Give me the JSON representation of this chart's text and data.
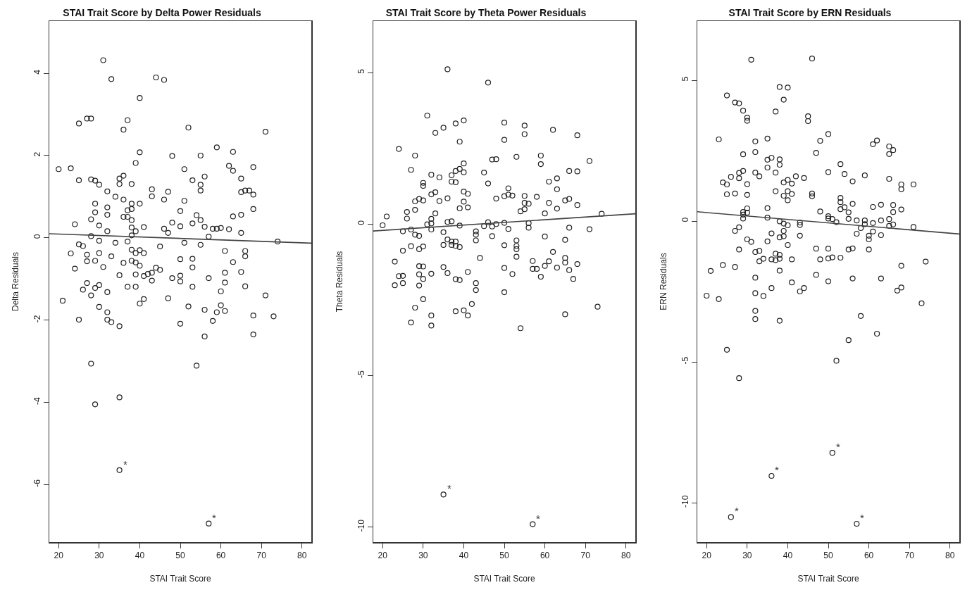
{
  "chart_data": [
    {
      "type": "scatter",
      "title": "STAI Trait Score by Delta Power Residuals",
      "xlabel": "STAI Trait Score",
      "ylabel": "Delta Residuals",
      "xlim": [
        17.7,
        82.3
      ],
      "xticks": [
        20,
        30,
        40,
        50,
        60,
        70,
        80
      ],
      "ylim": [
        -7.4,
        5.27
      ],
      "yticks": [
        -6,
        -4,
        -2,
        0,
        2,
        4
      ],
      "grid": false,
      "annotations": [
        {
          "text": "*",
          "x": 35,
          "y": -5.65
        },
        {
          "text": "*",
          "x": 57,
          "y": -6.95
        }
      ],
      "series": [
        {
          "marker": "circle",
          "color": "#222222",
          "x": [
            31,
            33,
            44,
            46,
            40,
            25,
            27,
            28,
            37,
            36,
            52,
            71,
            59,
            63,
            40,
            48,
            55,
            20,
            23,
            39,
            51,
            62,
            63,
            68,
            25,
            28,
            29,
            30,
            35,
            36,
            35,
            38,
            53,
            56,
            55,
            55,
            65,
            65,
            66,
            67,
            68,
            32,
            43,
            47,
            34,
            43,
            46,
            36,
            51,
            29,
            38,
            40,
            32,
            29,
            37,
            38,
            50,
            68,
            32,
            54,
            65,
            63,
            28,
            36,
            37,
            38,
            24,
            30,
            41,
            38,
            39,
            46,
            47,
            48,
            50,
            53,
            55,
            56,
            58,
            59,
            60,
            62,
            65,
            32,
            28,
            38,
            57,
            30,
            34,
            37,
            51,
            55,
            74,
            25,
            26,
            23,
            27,
            30,
            33,
            38,
            39,
            40,
            41,
            45,
            61,
            66,
            66,
            27,
            29,
            36,
            38,
            39,
            40,
            50,
            53,
            63,
            24,
            31,
            53,
            35,
            39,
            41,
            42,
            43,
            44,
            45,
            43,
            48,
            50,
            50,
            57,
            61,
            65,
            27,
            26,
            29,
            30,
            32,
            37,
            39,
            53,
            61,
            66,
            60,
            28,
            21,
            40,
            41,
            47,
            71,
            30,
            32,
            52,
            56,
            59,
            60,
            61,
            68,
            73,
            25,
            32,
            33,
            35,
            50,
            58,
            56,
            68,
            28,
            54,
            29,
            35,
            35,
            57
          ],
          "values": [
            4.32,
            3.86,
            3.9,
            3.84,
            3.4,
            2.78,
            2.9,
            2.9,
            2.86,
            2.63,
            2.68,
            2.58,
            2.2,
            2.09,
            2.08,
            1.99,
            2.0,
            1.67,
            1.69,
            1.82,
            1.67,
            1.75,
            1.63,
            1.72,
            1.4,
            1.42,
            1.39,
            1.29,
            1.44,
            1.51,
            1.31,
            1.31,
            1.4,
            1.49,
            1.29,
            1.15,
            1.44,
            1.11,
            1.15,
            1.15,
            1.05,
            1.13,
            1.18,
            1.12,
            1.0,
            1.01,
            0.93,
            0.93,
            0.9,
            0.83,
            0.83,
            0.83,
            0.74,
            0.62,
            0.67,
            0.7,
            0.65,
            0.7,
            0.56,
            0.55,
            0.56,
            0.52,
            0.45,
            0.51,
            0.51,
            0.43,
            0.33,
            0.3,
            0.26,
            0.25,
            0.16,
            0.22,
            0.12,
            0.37,
            0.28,
            0.35,
            0.43,
            0.27,
            0.22,
            0.22,
            0.24,
            0.21,
            0.12,
            0.16,
            0.04,
            0.06,
            0.03,
            -0.07,
            -0.12,
            -0.09,
            -0.12,
            -0.17,
            -0.09,
            -0.16,
            -0.2,
            -0.38,
            -0.41,
            -0.37,
            -0.45,
            -0.29,
            -0.37,
            -0.3,
            -0.37,
            -0.21,
            -0.32,
            -0.32,
            -0.45,
            -0.57,
            -0.56,
            -0.61,
            -0.56,
            -0.6,
            -0.68,
            -0.52,
            -0.51,
            -0.59,
            -0.75,
            -0.71,
            -0.72,
            -0.91,
            -0.89,
            -0.93,
            -0.88,
            -0.85,
            -0.73,
            -0.78,
            -1.04,
            -0.98,
            -0.92,
            -1.06,
            -0.98,
            -0.85,
            -0.83,
            -1.1,
            -1.26,
            -1.22,
            -1.15,
            -1.32,
            -1.19,
            -1.19,
            -1.19,
            -1.09,
            -1.18,
            -1.3,
            -1.4,
            -1.53,
            -1.6,
            -1.49,
            -1.47,
            -1.4,
            -1.68,
            -1.81,
            -1.67,
            -1.75,
            -1.81,
            -1.64,
            -1.78,
            -1.89,
            -1.91,
            -1.99,
            -1.99,
            -2.05,
            -2.15,
            -2.09,
            -2.02,
            -2.4,
            -2.35,
            -3.06,
            -3.11,
            -4.05,
            -3.88,
            -5.65,
            -6.95
          ]
        },
        {
          "type": "line",
          "marker": "none",
          "color": "#444444",
          "x": [
            17.7,
            82.3
          ],
          "values": [
            0.1,
            -0.13
          ]
        }
      ]
    },
    {
      "type": "scatter",
      "title": "STAI Trait Score by Theta Power Residuals",
      "xlabel": "STAI Trait Score",
      "ylabel": "Theta Residuals",
      "xlim": [
        17.7,
        82.3
      ],
      "xticks": [
        20,
        30,
        40,
        50,
        60,
        70,
        80
      ],
      "ylim": [
        -10.5,
        6.7
      ],
      "yticks": [
        -10,
        -5,
        0,
        5
      ],
      "grid": false,
      "annotations": [
        {
          "text": "*",
          "x": 35,
          "y": -8.93
        },
        {
          "text": "*",
          "x": 57,
          "y": -9.91
        }
      ],
      "series": [
        {
          "marker": "circle",
          "color": "#222222",
          "x": [
            36,
            46,
            31,
            40,
            38,
            35,
            33,
            50,
            55,
            55,
            62,
            68,
            39,
            50,
            24,
            28,
            47,
            48,
            53,
            59,
            59,
            71,
            27,
            32,
            34,
            37,
            38,
            39,
            40,
            40,
            45,
            37,
            38,
            46,
            66,
            68,
            63,
            61,
            63,
            30,
            30,
            32,
            33,
            40,
            41,
            51,
            51,
            50,
            52,
            55,
            58,
            28,
            29,
            30,
            34,
            36,
            40,
            39,
            41,
            48,
            55,
            56,
            55,
            54,
            61,
            63,
            65,
            66,
            68,
            60,
            74,
            26,
            28,
            21,
            26,
            33,
            32,
            20,
            31,
            32,
            36,
            37,
            39,
            45,
            46,
            47,
            48,
            50,
            51,
            56,
            56,
            66,
            71,
            25,
            27,
            28,
            29,
            32,
            35,
            43,
            43,
            47,
            60,
            65,
            43,
            36,
            37,
            38,
            35,
            37,
            38,
            39,
            27,
            29,
            30,
            25,
            50,
            53,
            53,
            53,
            53,
            62,
            44,
            23,
            29,
            30,
            35,
            57,
            61,
            60,
            57,
            58,
            63,
            65,
            65,
            66,
            68,
            50,
            52,
            59,
            67,
            24,
            25,
            29,
            30,
            32,
            36,
            41,
            38,
            39,
            23,
            25,
            29,
            43,
            43,
            50,
            30,
            28,
            42,
            38,
            40,
            41,
            32,
            27,
            32,
            54,
            65,
            73,
            35,
            57
          ],
          "values": [
            5.11,
            4.67,
            3.58,
            3.42,
            3.32,
            3.18,
            3.01,
            3.35,
            3.25,
            2.97,
            3.11,
            2.93,
            2.72,
            2.78,
            2.48,
            2.26,
            2.13,
            2.14,
            2.22,
            2.26,
            1.98,
            2.08,
            1.79,
            1.63,
            1.54,
            1.61,
            1.75,
            1.82,
            2.0,
            1.71,
            1.7,
            1.4,
            1.38,
            1.34,
            1.75,
            1.74,
            1.51,
            1.4,
            1.15,
            1.36,
            1.26,
            0.98,
            1.05,
            1.07,
            1.0,
            1.18,
            0.97,
            0.92,
            0.94,
            0.93,
            0.9,
            0.75,
            0.83,
            0.78,
            0.76,
            0.85,
            0.74,
            0.52,
            0.55,
            0.84,
            0.7,
            0.67,
            0.49,
            0.42,
            0.7,
            0.51,
            0.78,
            0.83,
            0.63,
            0.35,
            0.34,
            0.4,
            0.47,
            0.25,
            0.18,
            0.35,
            0.17,
            -0.04,
            -0.01,
            0.02,
            0.07,
            0.09,
            -0.05,
            -0.07,
            0.06,
            -0.08,
            0.0,
            0.04,
            -0.16,
            0.03,
            -0.12,
            -0.12,
            -0.17,
            -0.24,
            -0.18,
            -0.35,
            -0.39,
            -0.18,
            -0.27,
            -0.24,
            -0.35,
            -0.4,
            -0.41,
            -0.52,
            -0.54,
            -0.51,
            -0.58,
            -0.58,
            -0.69,
            -0.69,
            -0.72,
            -0.76,
            -0.73,
            -0.83,
            -0.74,
            -0.88,
            -0.7,
            -0.54,
            -0.72,
            -0.83,
            -1.08,
            -0.92,
            -1.12,
            -1.24,
            -1.39,
            -1.4,
            -1.42,
            -1.22,
            -1.23,
            -1.38,
            -1.48,
            -1.48,
            -1.44,
            -1.12,
            -1.27,
            -1.52,
            -1.32,
            -1.45,
            -1.65,
            -1.74,
            -1.81,
            -1.72,
            -1.71,
            -1.66,
            -1.81,
            -1.64,
            -1.62,
            -1.58,
            -1.82,
            -1.85,
            -2.02,
            -1.95,
            -2.03,
            -1.95,
            -2.18,
            -2.25,
            -2.48,
            -2.76,
            -2.64,
            -2.88,
            -2.85,
            -3.02,
            -3.02,
            -3.25,
            -3.35,
            -3.44,
            -2.98,
            -2.73,
            -8.93,
            -9.91
          ]
        },
        {
          "type": "line",
          "marker": "none",
          "color": "#444444",
          "x": [
            17.7,
            82.3
          ],
          "values": [
            -0.23,
            0.34
          ]
        }
      ]
    },
    {
      "type": "scatter",
      "title": "STAI Trait Score by ERN Residuals",
      "xlabel": "STAI Trait Score",
      "ylabel": "ERN Residuals",
      "xlim": [
        17.7,
        82.3
      ],
      "xticks": [
        20,
        30,
        40,
        50,
        60,
        70,
        80
      ],
      "ylim": [
        -11.4,
        7.1
      ],
      "yticks": [
        -10,
        -5,
        0,
        5
      ],
      "grid": false,
      "annotations": [
        {
          "text": "*",
          "x": 51,
          "y": -8.23
        },
        {
          "text": "*",
          "x": 36,
          "y": -9.05
        },
        {
          "text": "*",
          "x": 26,
          "y": -10.51
        },
        {
          "text": "*",
          "x": 57,
          "y": -10.75
        }
      ],
      "series": [
        {
          "marker": "circle",
          "color": "#222222",
          "x": [
            31,
            46,
            38,
            40,
            25,
            27,
            28,
            39,
            29,
            30,
            30,
            37,
            45,
            45,
            23,
            32,
            35,
            50,
            48,
            61,
            62,
            65,
            66,
            65,
            29,
            32,
            47,
            35,
            36,
            38,
            38,
            35,
            53,
            28,
            29,
            32,
            33,
            37,
            26,
            28,
            42,
            44,
            50,
            54,
            59,
            65,
            24,
            25,
            30,
            39,
            40,
            41,
            56,
            68,
            68,
            71,
            25,
            27,
            30,
            37,
            39,
            40,
            41,
            40,
            46,
            46,
            53,
            53,
            56,
            63,
            66,
            35,
            30,
            53,
            54,
            61,
            66,
            68,
            29,
            30,
            29,
            48,
            55,
            29,
            35,
            50,
            50,
            51,
            52,
            55,
            57,
            59,
            59,
            61,
            63,
            65,
            65,
            66,
            71,
            38,
            39,
            40,
            43,
            43,
            58,
            61,
            57,
            60,
            60,
            63,
            43,
            28,
            27,
            36,
            39,
            38,
            39,
            30,
            31,
            35,
            40,
            28,
            32,
            33,
            34,
            33,
            36,
            37,
            37,
            38,
            38,
            41,
            47,
            50,
            55,
            56,
            60,
            48,
            50,
            51,
            53,
            74,
            24,
            27,
            21,
            38,
            32,
            41,
            47,
            50,
            56,
            63,
            68,
            36,
            43,
            44,
            67,
            68,
            20,
            23,
            32,
            34,
            73,
            32,
            32,
            38,
            58,
            62,
            25,
            28,
            55,
            52,
            51,
            36,
            26,
            57
          ],
          "values": [
            5.73,
            5.77,
            4.76,
            4.74,
            4.46,
            4.21,
            4.18,
            4.31,
            3.92,
            3.67,
            3.56,
            3.89,
            3.72,
            3.55,
            2.9,
            2.83,
            2.93,
            3.09,
            2.85,
            2.73,
            2.86,
            2.65,
            2.52,
            2.38,
            2.37,
            2.45,
            2.42,
            2.18,
            2.25,
            2.19,
            2.0,
            1.9,
            2.02,
            1.71,
            1.78,
            1.72,
            1.59,
            1.72,
            1.57,
            1.52,
            1.59,
            1.53,
            1.74,
            1.67,
            1.62,
            1.5,
            1.37,
            1.3,
            1.31,
            1.37,
            1.46,
            1.33,
            1.41,
            1.3,
            1.13,
            1.3,
            0.95,
            0.98,
            0.93,
            1.06,
            0.9,
            1.06,
            0.96,
            0.74,
            0.98,
            0.88,
            0.82,
            0.67,
            0.61,
            0.58,
            0.57,
            0.46,
            0.45,
            0.42,
            0.49,
            0.5,
            0.32,
            0.41,
            0.32,
            0.3,
            0.23,
            0.34,
            0.31,
            0.09,
            0.12,
            0.17,
            0.09,
            0.07,
            -0.04,
            0.08,
            0.02,
            0.02,
            -0.11,
            -0.07,
            0.02,
            0.07,
            -0.17,
            -0.12,
            -0.21,
            -0.01,
            -0.09,
            -0.15,
            -0.05,
            -0.14,
            -0.25,
            -0.37,
            -0.45,
            -0.52,
            -0.65,
            -0.5,
            -0.52,
            -0.22,
            -0.35,
            -0.44,
            -0.35,
            -0.58,
            -0.54,
            -0.65,
            -0.74,
            -0.72,
            -0.85,
            -1.01,
            -1.1,
            -1.06,
            -1.34,
            -1.43,
            -1.36,
            -1.16,
            -1.39,
            -1.2,
            -1.34,
            -1.36,
            -0.98,
            -0.98,
            -1.01,
            -0.97,
            -1.01,
            -1.36,
            -1.33,
            -1.29,
            -1.3,
            -1.44,
            -1.56,
            -1.63,
            -1.77,
            -1.76,
            -2.01,
            -2.18,
            -1.91,
            -2.14,
            -2.04,
            -2.04,
            -1.59,
            -2.38,
            -2.5,
            -2.38,
            -2.47,
            -2.36,
            -2.65,
            -2.77,
            -2.56,
            -2.66,
            -2.92,
            -3.19,
            -3.48,
            -3.54,
            -3.37,
            -4.0,
            -4.57,
            -5.58,
            -4.23,
            -4.96,
            -8.23,
            -9.05,
            -10.51,
            -10.75
          ]
        },
        {
          "type": "line",
          "marker": "none",
          "color": "#444444",
          "x": [
            17.7,
            82.3
          ],
          "values": [
            0.33,
            -0.46
          ]
        }
      ]
    }
  ]
}
